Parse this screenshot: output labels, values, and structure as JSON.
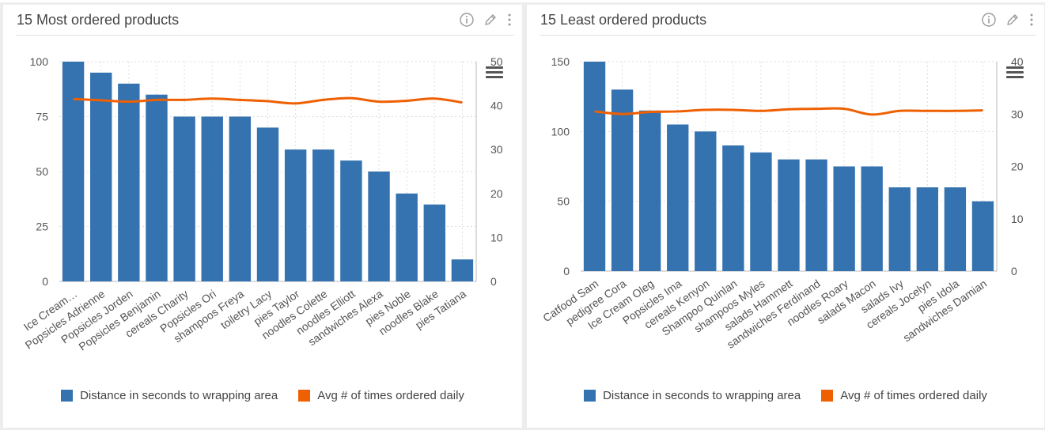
{
  "charts": [
    {
      "title": "15 Most ordered products",
      "legend": [
        "Distance in seconds to wrapping area",
        "Avg # of times ordered daily"
      ]
    },
    {
      "title": "15 Least ordered products",
      "legend": [
        "Distance in seconds to wrapping area",
        "Avg # of times ordered daily"
      ]
    }
  ],
  "colors": {
    "bar": "#3572b0",
    "line": "#ee6002",
    "grid": "#dddddd",
    "axis_text": "#555555"
  },
  "icons": [
    "info-icon",
    "pencil-icon",
    "kebab-menu-icon",
    "hamburger-menu-icon"
  ],
  "chart_data": [
    {
      "type": "bar",
      "title": "15 Most ordered products",
      "categories": [
        "Ice Cream…",
        "Popsicles Adrienne",
        "Popsicles Jorden",
        "Popsicles Benjamin",
        "cereals Charity",
        "Popsicles Ori",
        "shampoos Freya",
        "toiletry Lacy",
        "pies Taylor",
        "noodles Colette",
        "noodles Elliott",
        "sandwiches Alexa",
        "pies Noble",
        "noodles Blake",
        "pies Tatiana"
      ],
      "series": [
        {
          "name": "Distance in seconds to wrapping area",
          "type": "bar",
          "axis": "left",
          "values": [
            100,
            95,
            90,
            85,
            75,
            75,
            75,
            70,
            60,
            60,
            55,
            50,
            40,
            35,
            10
          ]
        },
        {
          "name": "Avg # of times ordered daily",
          "type": "line",
          "axis": "right",
          "values": [
            41.5,
            41.2,
            40.9,
            41.3,
            41.3,
            41.6,
            41.3,
            41.0,
            40.5,
            41.3,
            41.7,
            40.9,
            41.1,
            41.6,
            40.7
          ]
        }
      ],
      "ylim_left": [
        0,
        100
      ],
      "yticks_left": [
        "0",
        "25",
        "50",
        "75",
        "100"
      ],
      "ylim_right": [
        0,
        50
      ],
      "yticks_right": [
        "0",
        "10",
        "20",
        "30",
        "40",
        "50"
      ],
      "grid": true,
      "legend_position": "bottom"
    },
    {
      "type": "bar",
      "title": "15 Least ordered products",
      "categories": [
        "Catfood Sam",
        "pedigree Cora",
        "Ice Cream Oleg",
        "Popsicles Ima",
        "cereals Kenyon",
        "Shampoo Quinlan",
        "shampoos Myles",
        "salads Hammett",
        "sandwiches Ferdinand",
        "noodles Roary",
        "salads Macon",
        "salads Ivy",
        "cereals Jocelyn",
        "pies Idola",
        "sandwiches Damian"
      ],
      "series": [
        {
          "name": "Distance in seconds to wrapping area",
          "type": "bar",
          "axis": "left",
          "values": [
            150,
            130,
            115,
            105,
            100,
            90,
            85,
            80,
            80,
            75,
            75,
            60,
            60,
            60,
            50
          ]
        },
        {
          "name": "Avg # of times ordered daily",
          "type": "line",
          "axis": "right",
          "values": [
            30.5,
            30.0,
            30.4,
            30.5,
            30.8,
            30.8,
            30.6,
            30.9,
            31.0,
            31.0,
            29.9,
            30.6,
            30.6,
            30.6,
            30.7
          ]
        }
      ],
      "ylim_left": [
        0,
        150
      ],
      "yticks_left": [
        "0",
        "50",
        "100",
        "150"
      ],
      "ylim_right": [
        0,
        40
      ],
      "yticks_right": [
        "0",
        "10",
        "20",
        "30",
        "40"
      ],
      "grid": true,
      "legend_position": "bottom"
    }
  ]
}
